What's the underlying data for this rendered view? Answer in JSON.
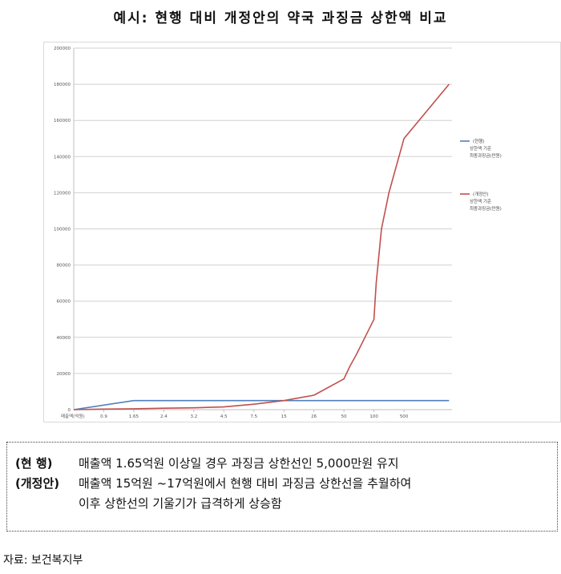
{
  "title": "예시: 현행 대비 개정안의 약국 과징금 상한액 비교",
  "chart_data": {
    "type": "line",
    "xlabel": "매출액(억원)",
    "categories": [
      "0.9",
      "1.65",
      "2.4",
      "3.2",
      "4.5",
      "7.5",
      "15",
      "26",
      "50",
      "100",
      "500"
    ],
    "ylim": [
      0,
      200000
    ],
    "yticks": [
      0,
      20000,
      40000,
      60000,
      80000,
      100000,
      120000,
      140000,
      160000,
      180000,
      200000
    ],
    "grid": true,
    "legend_position": "right",
    "series": [
      {
        "name": "(현행) 상한액 기준 최종과징금(만원)",
        "legend_lines": [
          "(현행)",
          "상한액 기준",
          "최종과징금(만원)"
        ],
        "color": "#4f81bd",
        "points": [
          [
            0,
            0
          ],
          [
            1.65,
            5000
          ],
          [
            2.4,
            5000
          ],
          [
            3.2,
            5000
          ],
          [
            4.5,
            5000
          ],
          [
            7.5,
            5000
          ],
          [
            15,
            5000
          ],
          [
            26,
            5000
          ],
          [
            50,
            5000
          ],
          [
            100,
            5000
          ],
          [
            500,
            5000
          ],
          [
            1000,
            5000
          ]
        ]
      },
      {
        "name": "(개정안) 상한액 기준 최종과징금(만원)",
        "legend_lines": [
          "(개정안)",
          "상한액 기준",
          "최종과징금(만원)"
        ],
        "color": "#c0504d",
        "points": [
          [
            0,
            0
          ],
          [
            0.9,
            300
          ],
          [
            1.65,
            500
          ],
          [
            2.4,
            800
          ],
          [
            3.2,
            1000
          ],
          [
            4.5,
            1500
          ],
          [
            7.5,
            3000
          ],
          [
            15,
            5000
          ],
          [
            26,
            8000
          ],
          [
            50,
            17000
          ],
          [
            60,
            24000
          ],
          [
            70,
            30000
          ],
          [
            85,
            40000
          ],
          [
            100,
            50000
          ],
          [
            130,
            70000
          ],
          [
            200,
            100000
          ],
          [
            300,
            120000
          ],
          [
            500,
            150000
          ],
          [
            1000,
            180000
          ]
        ]
      }
    ]
  },
  "note": {
    "row1_label": "(현  행)",
    "row1_text": "매출액 1.65억원 이상일 경우 과징금 상한선인 5,000만원 유지",
    "row2_label": "(개정안)",
    "row2_text": "매출액 15억원 ~17억원에서 현행 대비 과징금 상한선을 추월하여",
    "row3_text": "이후 상한선의 기울기가 급격하게 상승함"
  },
  "source": "자료: 보건복지부"
}
